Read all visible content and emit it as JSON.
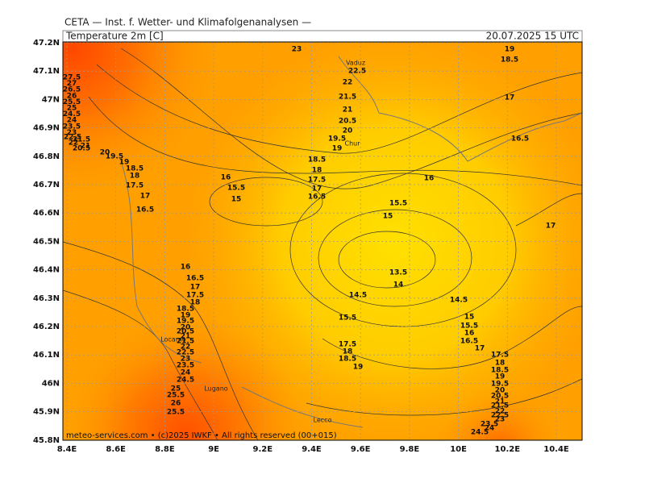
{
  "header": {
    "model": "CETA — Inst. f. Wetter- und Klimafolgenanalysen —",
    "field": "Temperature 2m [C]",
    "valid": "20.07.2025 15 UTC"
  },
  "axes": {
    "x_labels": [
      "8.4E",
      "8.6E",
      "8.8E",
      "9E",
      "9.2E",
      "9.4E",
      "9.6E",
      "9.8E",
      "10E",
      "10.2E",
      "10.4E"
    ],
    "y_labels": [
      "47.2N",
      "47.1N",
      "47N",
      "46.9N",
      "46.8N",
      "46.7N",
      "46.6N",
      "46.5N",
      "46.4N",
      "46.3N",
      "46.2N",
      "46.1N",
      "46N",
      "45.9N",
      "45.8N"
    ]
  },
  "places": [
    "Vaduz",
    "Chur",
    "Locarno",
    "Lugano",
    "Lecco"
  ],
  "contour_labels": [
    "23",
    "22.5",
    "22",
    "21.5",
    "21",
    "20.5",
    "20",
    "19.5",
    "19",
    "18.5",
    "18",
    "17.5",
    "17",
    "16.5",
    "27.5",
    "27",
    "26.5",
    "26",
    "25.5",
    "25",
    "24.5",
    "24",
    "23.5",
    "23",
    "22.5",
    "22",
    "21.5",
    "21",
    "20.5",
    "20",
    "19.5",
    "19",
    "18.5",
    "18",
    "17.5",
    "17",
    "16.5",
    "16",
    "15.5",
    "15",
    "19",
    "18.5",
    "17",
    "16.5",
    "16",
    "17",
    "15.5",
    "15",
    "13.5",
    "14",
    "14.5",
    "14.5",
    "15.5",
    "15",
    "15.5",
    "16",
    "16.5",
    "17",
    "17.5",
    "18",
    "18.5",
    "19",
    "19.5",
    "20",
    "20.5",
    "21",
    "21.5",
    "22",
    "22.5",
    "23",
    "23.5",
    "24",
    "24.5",
    "17.5",
    "18",
    "18.5",
    "19",
    "16",
    "16.5",
    "17",
    "17.5",
    "18",
    "18.5",
    "19",
    "19.5",
    "20",
    "20.5",
    "21",
    "21.5",
    "22",
    "22.5",
    "23",
    "23.5",
    "24",
    "24.5",
    "25",
    "25.5",
    "26",
    "25.5"
  ],
  "footer": "meteo-services.com • (c)2025 IWKF • All rights reserved (00+015)"
}
